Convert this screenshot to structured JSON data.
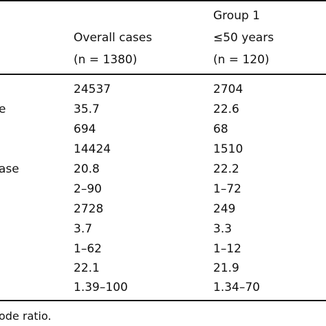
{
  "header": {
    "col1": {
      "line1": "Overall cases",
      "line2": "(n = 1380)"
    },
    "col2": {
      "line1": "Group 1",
      "line2": "≤50 years",
      "line3": "(n = 120)"
    }
  },
  "rows": [
    {
      "label": "",
      "overall": "24537",
      "group1": "2704"
    },
    {
      "label": "e",
      "overall": "35.7",
      "group1": "22.6"
    },
    {
      "label": "",
      "overall": "694",
      "group1": "68"
    },
    {
      "label": "",
      "overall": "14424",
      "group1": "1510"
    },
    {
      "label": "ase",
      "overall": "20.8",
      "group1": "22.2"
    },
    {
      "label": "",
      "overall": "2–90",
      "group1": "1–72"
    },
    {
      "label": "",
      "overall": "2728",
      "group1": "249"
    },
    {
      "label": "",
      "overall": "3.7",
      "group1": "3.3"
    },
    {
      "label": "",
      "overall": "1–62",
      "group1": "1–12"
    },
    {
      "label": "",
      "overall": "22.1",
      "group1": "21.9"
    },
    {
      "label": "",
      "overall": "1.39–100",
      "group1": "1.34–70"
    }
  ],
  "footnote": "ode ratio."
}
